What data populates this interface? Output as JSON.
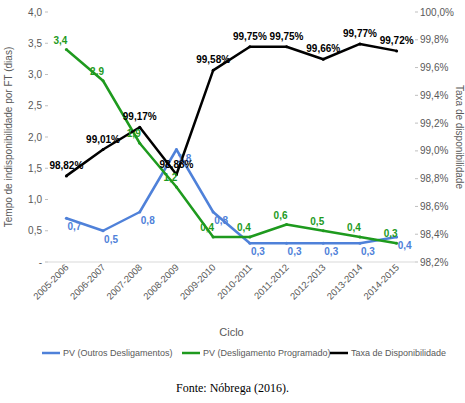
{
  "chart_data": {
    "type": "line",
    "categories": [
      "2005-2006",
      "2006-2007",
      "2007-2008",
      "2008-2009",
      "2009-2010",
      "2010-2011",
      "2011-2012",
      "2012-2013",
      "2013-2014",
      "2014-2015"
    ],
    "x_label": "Ciclo",
    "y_label": "Tempo de indisponibilidade por FT (dias)",
    "y2_label": "Taxa de disponibilidade",
    "caption": "Fonte: Nóbrega (2016).",
    "ylim": [
      0,
      4
    ],
    "yticks": [
      {
        "value": 0,
        "label": "-"
      },
      {
        "value": 0.5,
        "label": "0,5"
      },
      {
        "value": 1,
        "label": "1,0"
      },
      {
        "value": 1.5,
        "label": "1,5"
      },
      {
        "value": 2,
        "label": "2,0"
      },
      {
        "value": 2.5,
        "label": "2,5"
      },
      {
        "value": 3,
        "label": "3,0"
      },
      {
        "value": 3.5,
        "label": "3,5"
      },
      {
        "value": 4,
        "label": "4,0"
      }
    ],
    "y2lim": [
      98.2,
      100
    ],
    "y2ticks": [
      {
        "value": 98.2,
        "label": "98,2%"
      },
      {
        "value": 98.4,
        "label": "98,4%"
      },
      {
        "value": 98.6,
        "label": "98,6%"
      },
      {
        "value": 98.8,
        "label": "98,8%"
      },
      {
        "value": 99.0,
        "label": "99,0%"
      },
      {
        "value": 99.2,
        "label": "99,2%"
      },
      {
        "value": 99.4,
        "label": "99,4%"
      },
      {
        "value": 99.6,
        "label": "99,6%"
      },
      {
        "value": 99.8,
        "label": "99,8%"
      },
      {
        "value": 100.0,
        "label": "100,0%"
      }
    ],
    "grid": false,
    "legend": "bottom",
    "data_labels": true,
    "series": [
      {
        "name": "PV (Outros Desligamentos)",
        "color": "#4f81d9",
        "values": [
          0.7,
          0.5,
          0.8,
          1.8,
          0.8,
          0.3,
          0.3,
          0.3,
          0.3,
          0.4
        ],
        "value_labels": [
          "0,7",
          "0,5",
          "0,8",
          "1,8",
          "0,8",
          "0,3",
          "0,3",
          "0,3",
          "0,3",
          "0,4"
        ]
      },
      {
        "name": "PV (Desligamento Programado)",
        "color": "#1e9a1e",
        "values": [
          3.4,
          2.9,
          1.9,
          1.2,
          0.4,
          0.4,
          0.6,
          0.5,
          0.4,
          0.3
        ],
        "value_labels": [
          "3,4",
          "2,9",
          "1,9",
          "1,2",
          "0,4",
          "0,4",
          "0,6",
          "0,5",
          "0,4",
          "0,3"
        ]
      },
      {
        "name": "Taxa de Disponibilidade",
        "color": "#000000",
        "axis": "y2",
        "values": [
          98.82,
          99.01,
          99.17,
          98.83,
          99.58,
          99.75,
          99.75,
          99.66,
          99.77,
          99.72
        ],
        "value_labels": [
          "98,82%",
          "99,01%",
          "99,17%",
          "98,83%",
          "99,58%",
          "99,75%",
          "99,75%",
          "99,66%",
          "99,77%",
          "99,72%"
        ]
      }
    ]
  }
}
